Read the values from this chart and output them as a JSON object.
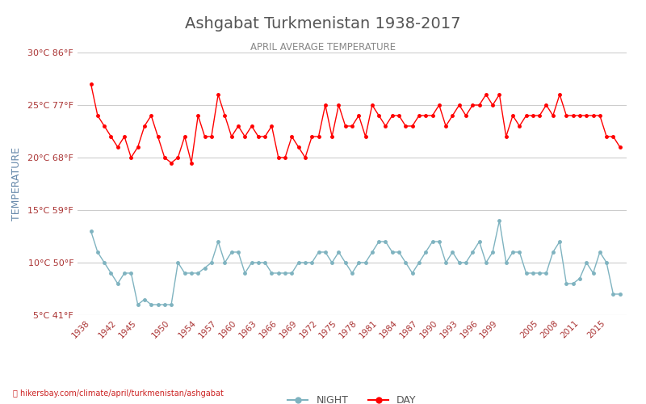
{
  "title": "Ashgabat Turkmenistan 1938-2017",
  "subtitle": "APRIL AVERAGE TEMPERATURE",
  "ylabel": "TEMPERATURE",
  "footer": "hikersbay.com/climate/april/turkmenistan/ashgabat",
  "ylim": [
    5,
    30
  ],
  "yticks_c": [
    5,
    10,
    15,
    20,
    25,
    30
  ],
  "yticks_f": [
    41,
    50,
    59,
    68,
    77,
    86
  ],
  "years": [
    1938,
    1939,
    1940,
    1941,
    1942,
    1943,
    1944,
    1945,
    1946,
    1947,
    1948,
    1949,
    1950,
    1951,
    1952,
    1953,
    1954,
    1955,
    1956,
    1957,
    1958,
    1959,
    1960,
    1961,
    1962,
    1963,
    1964,
    1965,
    1966,
    1967,
    1968,
    1969,
    1970,
    1971,
    1972,
    1973,
    1974,
    1975,
    1976,
    1977,
    1978,
    1979,
    1980,
    1981,
    1982,
    1983,
    1984,
    1985,
    1986,
    1987,
    1988,
    1989,
    1990,
    1991,
    1992,
    1993,
    1994,
    1995,
    1996,
    1997,
    1998,
    1999,
    2000,
    2001,
    2002,
    2003,
    2004,
    2005,
    2006,
    2007,
    2008,
    2009,
    2010,
    2011,
    2012,
    2013,
    2014,
    2015,
    2016,
    2017
  ],
  "day_temps": [
    27,
    24,
    23,
    22,
    21,
    22,
    20,
    21,
    23,
    24,
    22,
    20,
    19.5,
    20,
    22,
    19.5,
    24,
    22,
    22,
    26,
    24,
    22,
    23,
    22,
    23,
    22,
    22,
    23,
    20,
    20,
    22,
    21,
    20,
    22,
    22,
    25,
    22,
    25,
    23,
    23,
    24,
    22,
    25,
    24,
    23,
    24,
    24,
    23,
    23,
    24,
    24,
    24,
    25,
    23,
    24,
    25,
    24,
    25,
    25,
    26,
    25,
    26,
    22,
    24,
    23,
    24,
    24,
    24,
    25,
    24,
    26,
    24,
    24,
    24,
    24,
    24,
    24,
    22,
    22,
    21
  ],
  "night_temps": [
    13,
    11,
    10,
    9,
    8,
    9,
    9,
    6,
    6.5,
    6,
    6,
    6,
    6,
    10,
    9,
    9,
    9,
    9.5,
    10,
    12,
    10,
    11,
    11,
    9,
    10,
    10,
    10,
    9,
    9,
    9,
    9,
    10,
    10,
    10,
    11,
    11,
    10,
    11,
    10,
    9,
    10,
    10,
    11,
    12,
    12,
    11,
    11,
    10,
    9,
    10,
    11,
    12,
    12,
    10,
    11,
    10,
    10,
    11,
    12,
    10,
    11,
    14,
    10,
    11,
    11,
    9,
    9,
    9,
    9,
    11,
    12,
    8,
    8,
    8.5,
    10,
    9,
    11,
    10,
    7,
    7
  ],
  "day_color": "#ff0000",
  "night_color": "#7fb3c0",
  "background_color": "#ffffff",
  "grid_color": "#cccccc",
  "title_color": "#555555",
  "subtitle_color": "#888888",
  "ylabel_color": "#6688aa",
  "tick_color": "#aa3333",
  "footer_color": "#cc2222",
  "legend_night_color": "#7fb3c0",
  "legend_day_color": "#ff0000",
  "xtick_labels": [
    "1938",
    "1942",
    "1945",
    "1950",
    "1954",
    "1957",
    "1960",
    "1963",
    "1966",
    "1969",
    "1972",
    "1975",
    "1978",
    "1981",
    "1984",
    "1987",
    "1990",
    "1993",
    "1996",
    "1999",
    "2005",
    "2008",
    "2011",
    "2015"
  ],
  "xtick_years": [
    1938,
    1942,
    1945,
    1950,
    1954,
    1957,
    1960,
    1963,
    1966,
    1969,
    1972,
    1975,
    1978,
    1981,
    1984,
    1987,
    1990,
    1993,
    1996,
    1999,
    2005,
    2008,
    2011,
    2015
  ]
}
